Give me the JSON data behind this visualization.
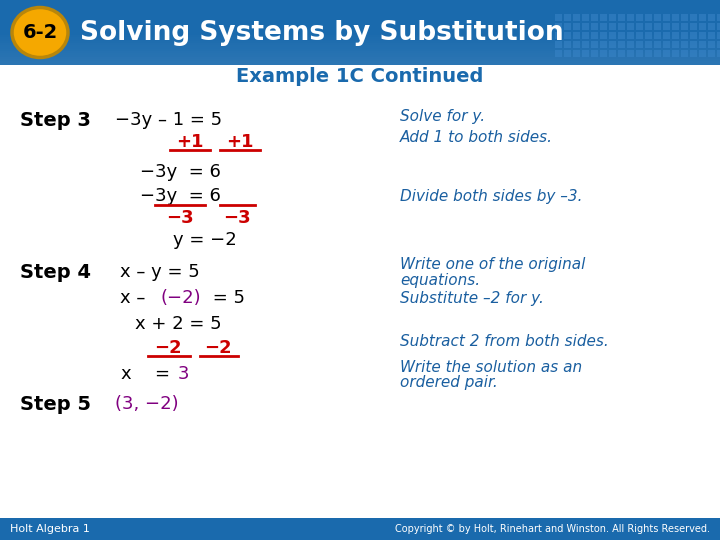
{
  "title_badge": "6-2",
  "title_text": "Solving Systems by Substitution",
  "header_bg": "#1a6aad",
  "badge_bg": "#f5a800",
  "badge_border": "#b8860b",
  "example_title": "Example 1C Continued",
  "example_title_color": "#1a6aad",
  "footer_text_left": "Holt Algebra 1",
  "footer_text_right": "Copyright © by Holt, Rinehart and Winston. All Rights Reserved.",
  "footer_bg": "#1a6aad",
  "bg_color": "#f0f4f8",
  "white": "#ffffff",
  "black": "#000000",
  "red": "#cc0000",
  "purple": "#800080",
  "blue_italic": "#1a5fa0",
  "grid_color": "#3a85c8"
}
